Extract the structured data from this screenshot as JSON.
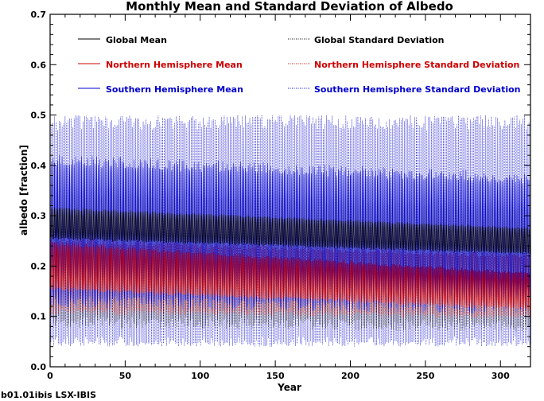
{
  "chart_data": {
    "type": "line",
    "title": "Monthly Mean and Standard Deviation of Albedo",
    "xlabel": "Year",
    "ylabel": "albedo [fraction]",
    "xlim": [
      0,
      320
    ],
    "ylim": [
      0.0,
      0.7
    ],
    "x_ticks": [
      0,
      50,
      100,
      150,
      200,
      250,
      300
    ],
    "x_tick_labels": [
      "0",
      "50",
      "100",
      "150",
      "200",
      "250",
      "300"
    ],
    "y_ticks": [
      0.0,
      0.1,
      0.2,
      0.3,
      0.4,
      0.5,
      0.6,
      0.7
    ],
    "y_tick_labels": [
      "0.0",
      "0.1",
      "0.2",
      "0.3",
      "0.4",
      "0.5",
      "0.6",
      "0.7"
    ],
    "legend_placement": "top",
    "series": [
      {
        "name": "Global Mean",
        "style": "solid",
        "color": "#000000",
        "mean_start": 0.285,
        "mean_end": 0.25,
        "amplitude_start": 0.03,
        "amplitude_end": 0.025,
        "min_floor": 0.22,
        "max_ceiling": 0.32
      },
      {
        "name": "Northern Hemisphere Mean",
        "style": "solid",
        "color": "#cc0000",
        "mean_start": 0.2,
        "mean_end": 0.15,
        "amplitude_start": 0.045,
        "amplitude_end": 0.035,
        "min_floor": 0.11,
        "max_ceiling": 0.25
      },
      {
        "name": "Southern Hemisphere Mean",
        "style": "solid",
        "color": "#0000cc",
        "mean_start": 0.27,
        "mean_end": 0.245,
        "amplitude_start": 0.14,
        "amplitude_end": 0.13,
        "min_floor": 0.1,
        "max_ceiling": 0.43
      },
      {
        "name": "Global Standard Deviation",
        "style": "dotted",
        "color": "#000000",
        "mean_start": 0.22,
        "mean_end": 0.2,
        "amplitude_start": 0.13,
        "amplitude_end": 0.12,
        "min_floor": 0.06,
        "max_ceiling": 0.36
      },
      {
        "name": "Northern Hemisphere Standard Deviation",
        "style": "dotted",
        "color": "#cc0000",
        "mean_start": 0.18,
        "mean_end": 0.16,
        "amplitude_start": 0.07,
        "amplitude_end": 0.06,
        "min_floor": 0.08,
        "max_ceiling": 0.26
      },
      {
        "name": "Southern Hemisphere Standard Deviation",
        "style": "dotted",
        "color": "#0000cc",
        "mean_start": 0.265,
        "mean_end": 0.265,
        "amplitude_start": 0.225,
        "amplitude_end": 0.225,
        "min_floor": 0.04,
        "max_ceiling": 0.5
      }
    ],
    "footer": "b01.01ibis LSX-IBIS"
  }
}
